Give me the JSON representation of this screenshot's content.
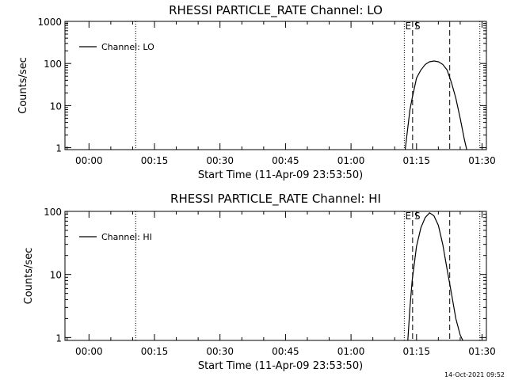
{
  "footer_date": "14-Oct-2021 09:52",
  "chart_data": [
    {
      "type": "line",
      "title": "RHESSI PARTICLE_RATE Channel: LO",
      "xlabel": "Start Time (11-Apr-09 23:53:50)",
      "ylabel": "Counts/sec",
      "yscale": "log",
      "ylim": [
        0.9,
        1000
      ],
      "xlim_minutes": [
        -5.5,
        91
      ],
      "x_ticks": [
        {
          "min": 0,
          "label": "00:00"
        },
        {
          "min": 15,
          "label": "00:15"
        },
        {
          "min": 30,
          "label": "00:30"
        },
        {
          "min": 45,
          "label": "00:45"
        },
        {
          "min": 60,
          "label": "01:00"
        },
        {
          "min": 75,
          "label": "01:15"
        },
        {
          "min": 90,
          "label": "01:30"
        }
      ],
      "y_ticks": [
        {
          "value": 1,
          "label": "1"
        },
        {
          "value": 10,
          "label": "10"
        },
        {
          "value": 100,
          "label": "100"
        },
        {
          "value": 1000,
          "label": "1000"
        }
      ],
      "legend": {
        "label": "Channel: LO",
        "position": "top-left"
      },
      "series": [
        {
          "name": "Channel: LO",
          "x": [
            72.4,
            73.0,
            73.5,
            74.0,
            75.0,
            76.0,
            77.0,
            78.0,
            79.0,
            80.0,
            81.0,
            82.0,
            83.0,
            84.0,
            85.0,
            86.0,
            86.5
          ],
          "y": [
            0.9,
            3,
            8,
            15,
            45,
            70,
            95,
            110,
            115,
            110,
            95,
            70,
            35,
            15,
            5,
            1.5,
            0.9
          ]
        }
      ],
      "dotted_lines_x": [
        10.7,
        72.2,
        89.5
      ],
      "dashed_lines_x": [
        74.1,
        82.6
      ],
      "markers": [
        {
          "x": 72.4,
          "label": "E"
        },
        {
          "x": 74.5,
          "label": "S"
        }
      ]
    },
    {
      "type": "line",
      "title": "RHESSI PARTICLE_RATE Channel: HI",
      "xlabel": "Start Time (11-Apr-09 23:53:50)",
      "ylabel": "Counts/sec",
      "yscale": "log",
      "ylim": [
        0.9,
        100
      ],
      "xlim_minutes": [
        -5.5,
        91
      ],
      "x_ticks": [
        {
          "min": 0,
          "label": "00:00"
        },
        {
          "min": 15,
          "label": "00:15"
        },
        {
          "min": 30,
          "label": "00:30"
        },
        {
          "min": 45,
          "label": "00:45"
        },
        {
          "min": 60,
          "label": "01:00"
        },
        {
          "min": 75,
          "label": "01:15"
        },
        {
          "min": 90,
          "label": "01:30"
        }
      ],
      "y_ticks": [
        {
          "value": 1,
          "label": "1"
        },
        {
          "value": 10,
          "label": "10"
        },
        {
          "value": 100,
          "label": "100"
        }
      ],
      "legend": {
        "label": "Channel: HI",
        "position": "top-left"
      },
      "series": [
        {
          "name": "Channel: HI",
          "x": [
            73.0,
            73.5,
            74.0,
            75.0,
            76.0,
            77.0,
            78.0,
            79.0,
            80.0,
            81.0,
            82.0,
            83.0,
            84.0,
            85.0,
            85.6
          ],
          "y": [
            0.9,
            3,
            8,
            28,
            55,
            80,
            95,
            85,
            60,
            30,
            12,
            5,
            2,
            1.1,
            0.9
          ]
        }
      ],
      "dotted_lines_x": [
        10.7,
        72.2,
        89.5
      ],
      "dashed_lines_x": [
        74.1,
        82.6
      ],
      "markers": [
        {
          "x": 72.4,
          "label": "E"
        },
        {
          "x": 74.5,
          "label": "S"
        }
      ]
    }
  ]
}
